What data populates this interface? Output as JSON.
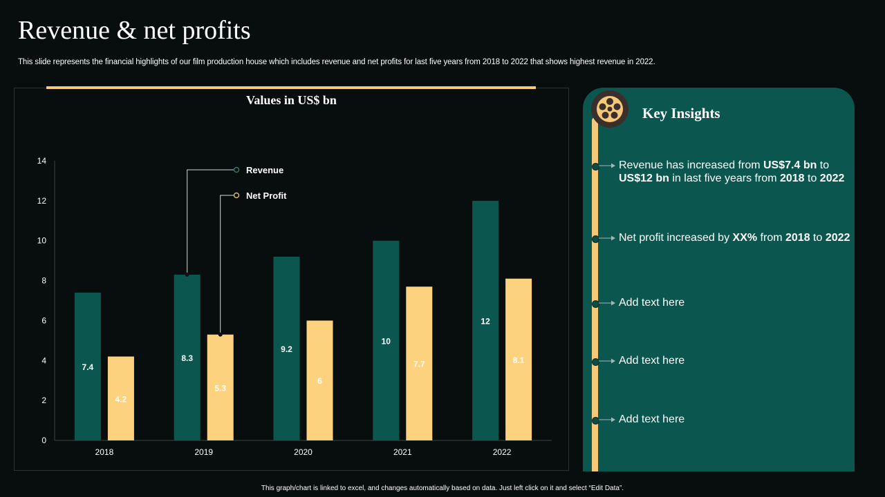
{
  "page": {
    "title": "Revenue & net profits",
    "subtitle": "This slide represents the financial highlights of our film production house which includes revenue and net profits for last five years from 2018 to 2022 that shows highest revenue in 2022.",
    "footer": "This graph/chart is linked to excel, and changes automatically based on data. Just left click on it and select “Edit Data”."
  },
  "colors": {
    "revenue": "#0b5750",
    "net_profit": "#fcd27f",
    "accent": "#f6c87a",
    "panel": "#0b5750"
  },
  "chart_data": {
    "type": "bar",
    "title": "Values in US$ bn",
    "categories": [
      "2018",
      "2019",
      "2020",
      "2021",
      "2022"
    ],
    "series": [
      {
        "name": "Revenue",
        "values": [
          7.4,
          8.3,
          9.2,
          10,
          12
        ],
        "labels": [
          "7.4",
          "8.3",
          "9.2",
          "10",
          "12"
        ]
      },
      {
        "name": "Net Profit",
        "values": [
          4.2,
          5.3,
          6,
          7.7,
          8.1
        ],
        "labels": [
          "4.2",
          "5.3",
          "6",
          "7.7",
          "8.1"
        ]
      }
    ],
    "yticks": [
      "0",
      "2",
      "4",
      "6",
      "8",
      "10",
      "12",
      "14"
    ],
    "ylim": [
      0,
      14
    ],
    "xlabel": "",
    "ylabel": "",
    "grid": false,
    "legend": "callout-top-center"
  },
  "insights": {
    "title": "Key Insights",
    "icon": "film-reel-icon",
    "items": [
      {
        "parts": [
          {
            "t": "Revenue has increased from "
          },
          {
            "t": "US$7.4 bn",
            "b": true
          },
          {
            "t": " to "
          },
          {
            "t": "US$12 bn",
            "b": true
          },
          {
            "t": " in last five years from "
          },
          {
            "t": "2018",
            "b": true
          },
          {
            "t": " to "
          },
          {
            "t": "2022",
            "b": true
          }
        ]
      },
      {
        "parts": [
          {
            "t": "Net profit increased by "
          },
          {
            "t": "XX%",
            "b": true
          },
          {
            "t": " from "
          },
          {
            "t": "2018",
            "b": true
          },
          {
            "t": " to "
          },
          {
            "t": "2022",
            "b": true
          }
        ]
      },
      {
        "parts": [
          {
            "t": "Add text here"
          }
        ]
      },
      {
        "parts": [
          {
            "t": "Add text here"
          }
        ]
      },
      {
        "parts": [
          {
            "t": "Add text here"
          }
        ]
      }
    ]
  }
}
